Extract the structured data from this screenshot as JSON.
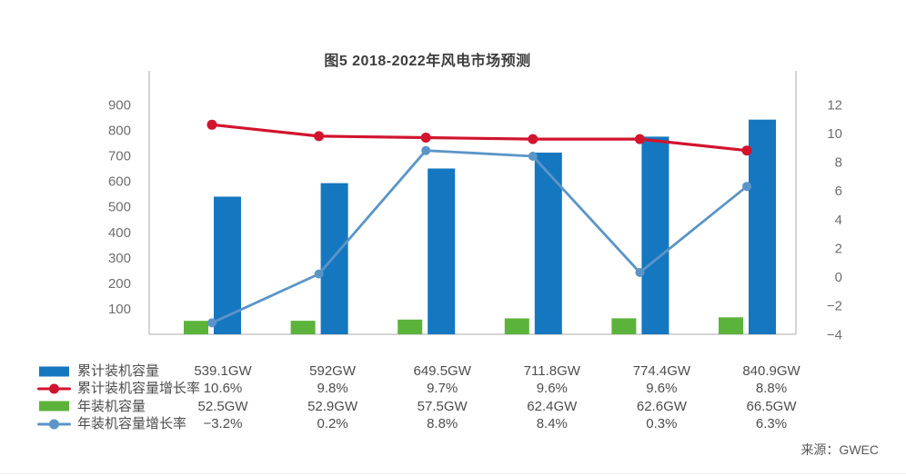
{
  "page": {
    "title": "图5 2018-2022年风电市场预测",
    "source": "来源：GWEC"
  },
  "chart_data": {
    "type": "combo-bar-line",
    "title": "图5 2018-2022年风电市场预测",
    "columns": 6,
    "x_tick_labels_visible": false,
    "grid": false,
    "legend_position": "bottom-table",
    "axis_color": "#c7c7c7",
    "left_axis": {
      "range": [
        0,
        1032
      ],
      "ticks": [
        100,
        200,
        300,
        400,
        500,
        600,
        700,
        800,
        900
      ],
      "tick_labels": [
        "100",
        "200",
        "300",
        "400",
        "500",
        "600",
        "700",
        "800",
        "900"
      ]
    },
    "right_axis": {
      "range": [
        -4,
        14.35
      ],
      "ticks": [
        -4,
        -2,
        0,
        2,
        4,
        6,
        8,
        10,
        12
      ],
      "tick_labels": [
        "−4",
        "−2",
        "0",
        "2",
        "4",
        "6",
        "8",
        "10",
        "12"
      ]
    },
    "series": [
      {
        "name": "累计装机容量",
        "type": "bar",
        "axis": "left",
        "color": "#1577bf",
        "values": [
          539.1,
          592,
          649.5,
          711.8,
          774.4,
          840.9
        ],
        "display": [
          "539.1GW",
          "592GW",
          "649.5GW",
          "711.8GW",
          "774.4GW",
          "840.9GW"
        ]
      },
      {
        "name": "累计装机容量增长率",
        "type": "line",
        "axis": "right",
        "color": "#d2142e",
        "values": [
          10.6,
          9.8,
          9.7,
          9.6,
          9.6,
          8.8
        ],
        "display": [
          "10.6%",
          "9.8%",
          "9.7%",
          "9.6%",
          "9.6%",
          "8.8%"
        ]
      },
      {
        "name": "年装机容量",
        "type": "bar",
        "axis": "left",
        "color": "#5cb33b",
        "values": [
          52.5,
          52.9,
          57.5,
          62.4,
          62.6,
          66.5
        ],
        "display": [
          "52.5GW",
          "52.9GW",
          "57.5GW",
          "62.4GW",
          "62.6GW",
          "66.5GW"
        ]
      },
      {
        "name": "年装机容量增长率",
        "type": "line",
        "axis": "right",
        "color": "#5b95c8",
        "values": [
          -3.2,
          0.2,
          8.8,
          8.4,
          0.3,
          6.3
        ],
        "display": [
          "−3.2%",
          "0.2%",
          "8.8%",
          "8.4%",
          "0.3%",
          "6.3%"
        ]
      }
    ]
  }
}
